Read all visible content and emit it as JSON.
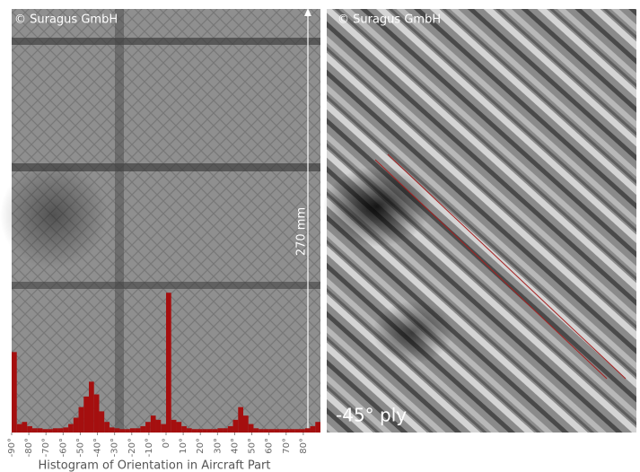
{
  "chart_data": {
    "type": "histogram",
    "title": "Histogram of Orientation in Aircraft Part",
    "annotations": [
      "© Suragus GmbH",
      "270 mm",
      "© Suragus GmbH",
      "-45° ply"
    ],
    "color": "#a50f0f",
    "bins": [
      -90,
      -87,
      -84,
      -81,
      -78,
      -75,
      -72,
      -69,
      -66,
      -63,
      -60,
      -57,
      -54,
      -51,
      -48,
      -45,
      -42,
      -39,
      -36,
      -33,
      -30,
      -27,
      -24,
      -21,
      -18,
      -15,
      -12,
      -9,
      -6,
      -3,
      0,
      3,
      6,
      9,
      12,
      15,
      18,
      21,
      24,
      27,
      30,
      33,
      36,
      39,
      42,
      45,
      48,
      51,
      54,
      57,
      60,
      63,
      66,
      69,
      72,
      75,
      78,
      81,
      84,
      87,
      90
    ],
    "values": [
      19,
      2,
      2.5,
      1.5,
      1,
      1,
      0.8,
      0.8,
      1,
      1,
      1.2,
      2,
      3.5,
      6,
      8.5,
      12,
      9,
      5,
      2.5,
      1.2,
      1,
      0.8,
      0.8,
      1,
      1,
      1.5,
      2.5,
      4,
      3,
      2,
      33,
      3,
      2.5,
      1.5,
      1,
      0.8,
      0.8,
      0.8,
      0.8,
      0.8,
      1,
      1,
      1.5,
      3,
      6,
      4,
      2,
      1,
      0.8,
      0.8,
      0.8,
      0.8,
      0.8,
      0.8,
      0.8,
      0.8,
      0.8,
      1,
      1.5,
      2.5
    ],
    "xlim": [
      -90,
      90
    ],
    "ylim": [
      0,
      100
    ],
    "xticks": [
      {
        "value": -90,
        "label": "-90°"
      },
      {
        "value": -80,
        "label": "-80°"
      },
      {
        "value": -70,
        "label": "-70°"
      },
      {
        "value": -60,
        "label": "-60°"
      },
      {
        "value": -50,
        "label": "-50°"
      },
      {
        "value": -40,
        "label": "-40°"
      },
      {
        "value": -30,
        "label": "-30°"
      },
      {
        "value": -20,
        "label": "-20°"
      },
      {
        "value": -10,
        "label": "-10°"
      },
      {
        "value": 0,
        "label": "0°"
      },
      {
        "value": 10,
        "label": "10°"
      },
      {
        "value": 20,
        "label": "20°"
      },
      {
        "value": 30,
        "label": "30°"
      },
      {
        "value": 40,
        "label": "40°"
      },
      {
        "value": 50,
        "label": "50°"
      },
      {
        "value": 60,
        "label": "60°"
      },
      {
        "value": 70,
        "label": "70°"
      },
      {
        "value": 80,
        "label": "80°"
      }
    ]
  }
}
